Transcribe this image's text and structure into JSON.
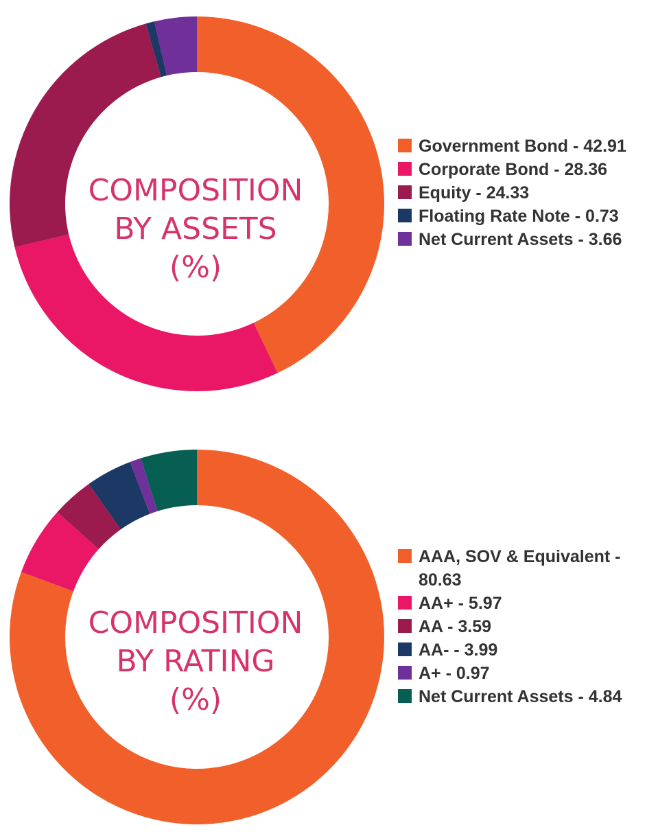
{
  "chart_data": [
    {
      "type": "pie",
      "title": "COMPOSITION BY ASSETS (%)",
      "title_lines": [
        "COMPOSITION",
        "BY ASSETS",
        "(%)"
      ],
      "categories": [
        "Government Bond",
        "Corporate Bond",
        "Equity",
        "Floating Rate Note",
        "Net Current Assets"
      ],
      "values": [
        42.91,
        28.36,
        24.33,
        0.73,
        3.66
      ],
      "colors": [
        "#f15f2a",
        "#ea1766",
        "#9b1b4f",
        "#1c3864",
        "#70309a"
      ],
      "legend_labels": [
        "Government Bond - 42.91",
        "Corporate Bond - 28.36",
        "Equity - 24.33",
        "Floating Rate Note - 0.73",
        "Net Current Assets - 3.66"
      ],
      "legend_position": "right"
    },
    {
      "type": "pie",
      "title": "COMPOSITION BY RATING (%)",
      "title_lines": [
        "COMPOSITION",
        "BY RATING",
        "(%)"
      ],
      "categories": [
        "AAA, SOV & Equivalent",
        "AA+",
        "AA",
        "AA-",
        "A+",
        "Net Current Assets"
      ],
      "values": [
        80.63,
        5.97,
        3.59,
        3.99,
        0.97,
        4.84
      ],
      "colors": [
        "#f15f2a",
        "#ea1766",
        "#9b1b4f",
        "#1c3864",
        "#70309a",
        "#075e52"
      ],
      "legend_labels": [
        "AAA, SOV & Equivalent - 80.63",
        "AA+ - 5.97",
        "AA - 3.59",
        "AA- - 3.99",
        "A+ - 0.97",
        "Net Current Assets - 4.84"
      ],
      "legend_position": "right"
    }
  ]
}
